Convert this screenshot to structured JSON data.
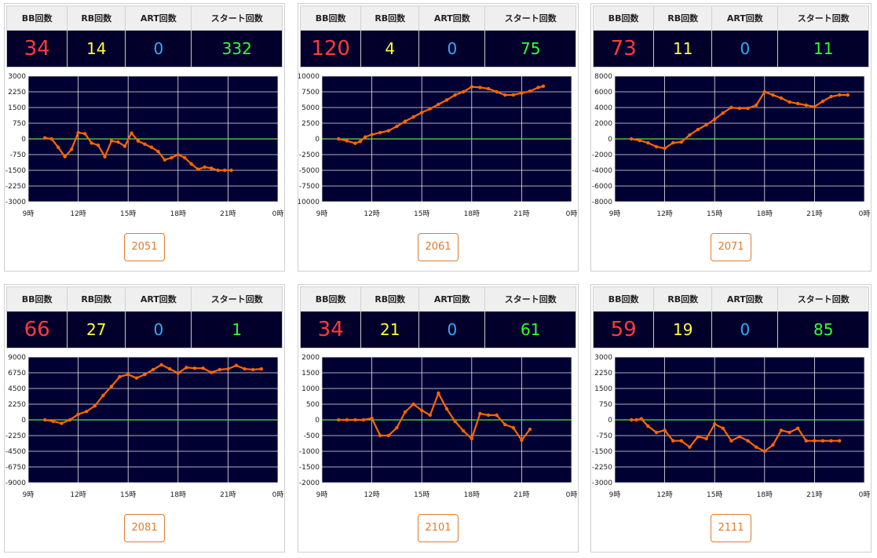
{
  "headers": {
    "bb": "BB回数",
    "rb": "RB回数",
    "art": "ART回数",
    "start": "スタート回数"
  },
  "colors": {
    "plot_bg": "#000033",
    "line": "#ff6600",
    "zero_line": "#66dd44",
    "grid": "#e8e8e8",
    "button": "#e07b2c"
  },
  "machines": [
    {
      "bb": "34",
      "rb": "14",
      "art": "0",
      "start": "332",
      "button": "2051",
      "chart_data": {
        "type": "line",
        "xlabel": "",
        "ylabel": "",
        "x_ticks": [
          "9時",
          "12時",
          "15時",
          "18時",
          "21時",
          "0時"
        ],
        "y_ticks": [
          "3000",
          "2250",
          "1500",
          "750",
          "0",
          "-750",
          "-1500",
          "-2250",
          "-3000"
        ],
        "xlim": [
          9,
          24
        ],
        "ylim": [
          -3000,
          3000
        ],
        "series": [
          {
            "x": [
              10.0,
              10.4,
              10.8,
              11.2,
              11.6,
              12.0,
              12.4,
              12.8,
              13.2,
              13.6,
              14.0,
              14.4,
              14.8,
              15.2,
              15.6,
              16.0,
              16.4,
              16.8,
              17.2,
              17.6,
              18.0,
              18.4,
              18.8,
              19.2,
              19.6,
              20.0,
              20.4,
              20.8,
              21.2
            ],
            "y": [
              50,
              0,
              -400,
              -850,
              -500,
              300,
              250,
              -200,
              -300,
              -850,
              -100,
              -150,
              -350,
              280,
              -100,
              -250,
              -400,
              -600,
              -1000,
              -900,
              -750,
              -900,
              -1200,
              -1450,
              -1350,
              -1400,
              -1500,
              -1500,
              -1500
            ]
          }
        ]
      }
    },
    {
      "bb": "120",
      "rb": "4",
      "art": "0",
      "start": "75",
      "button": "2061",
      "chart_data": {
        "type": "line",
        "xlabel": "",
        "ylabel": "",
        "x_ticks": [
          "9時",
          "12時",
          "15時",
          "18時",
          "21時",
          "0時"
        ],
        "y_ticks": [
          "10000",
          "7500",
          "5000",
          "2500",
          "0",
          "-2500",
          "-5000",
          "-7500",
          "-10000"
        ],
        "xlim": [
          9,
          24
        ],
        "ylim": [
          -10000,
          10000
        ],
        "series": [
          {
            "x": [
              10.0,
              10.5,
              11.0,
              11.3,
              11.6,
              12.0,
              12.5,
              13.0,
              13.5,
              14.0,
              14.5,
              15.0,
              15.5,
              16.0,
              16.5,
              17.0,
              17.5,
              18.0,
              18.5,
              19.0,
              19.5,
              20.0,
              20.5,
              21.0,
              21.5,
              22.0,
              22.3
            ],
            "y": [
              0,
              -300,
              -700,
              -400,
              300,
              700,
              1000,
              1300,
              2000,
              2800,
              3500,
              4200,
              4800,
              5500,
              6200,
              7000,
              7500,
              8300,
              8200,
              8000,
              7500,
              7000,
              7000,
              7300,
              7600,
              8200,
              8400
            ]
          }
        ]
      }
    },
    {
      "bb": "73",
      "rb": "11",
      "art": "0",
      "start": "11",
      "button": "2071",
      "chart_data": {
        "type": "line",
        "xlabel": "",
        "ylabel": "",
        "x_ticks": [
          "9時",
          "12時",
          "15時",
          "18時",
          "21時",
          "0時"
        ],
        "y_ticks": [
          "8000",
          "6000",
          "4000",
          "2000",
          "0",
          "-2000",
          "-4000",
          "-6000",
          "-8000"
        ],
        "xlim": [
          9,
          24
        ],
        "ylim": [
          -8000,
          8000
        ],
        "series": [
          {
            "x": [
              10.0,
              10.5,
              11.0,
              11.5,
              12.0,
              12.5,
              13.0,
              13.5,
              14.0,
              14.5,
              15.0,
              15.5,
              16.0,
              16.5,
              17.0,
              17.5,
              18.0,
              18.5,
              19.0,
              19.5,
              20.0,
              20.5,
              21.0,
              21.5,
              22.0,
              22.5,
              23.0
            ],
            "y": [
              0,
              -200,
              -500,
              -1000,
              -1200,
              -500,
              -400,
              500,
              1200,
              1800,
              2500,
              3300,
              4000,
              3900,
              3900,
              4300,
              6000,
              5600,
              5200,
              4700,
              4500,
              4300,
              4100,
              4800,
              5400,
              5600,
              5600
            ]
          }
        ]
      }
    },
    {
      "bb": "66",
      "rb": "27",
      "art": "0",
      "start": "1",
      "button": "2081",
      "chart_data": {
        "type": "line",
        "xlabel": "",
        "ylabel": "",
        "x_ticks": [
          "9時",
          "12時",
          "15時",
          "18時",
          "21時",
          "0時"
        ],
        "y_ticks": [
          "9000",
          "6750",
          "4500",
          "2250",
          "0",
          "-2250",
          "-4500",
          "-6750",
          "-9000"
        ],
        "xlim": [
          9,
          24
        ],
        "ylim": [
          -9000,
          9000
        ],
        "series": [
          {
            "x": [
              10.0,
              10.5,
              11.0,
              11.5,
              12.0,
              12.5,
              13.0,
              13.5,
              14.0,
              14.5,
              15.0,
              15.5,
              16.0,
              16.5,
              17.0,
              17.5,
              18.0,
              18.5,
              19.0,
              19.5,
              20.0,
              20.5,
              21.0,
              21.5,
              22.0,
              22.5,
              23.0
            ],
            "y": [
              0,
              -200,
              -500,
              0,
              800,
              1200,
              2000,
              3500,
              4800,
              6200,
              6500,
              6000,
              6500,
              7200,
              7900,
              7300,
              6700,
              7500,
              7400,
              7400,
              6800,
              7200,
              7300,
              7800,
              7300,
              7200,
              7300
            ]
          }
        ]
      }
    },
    {
      "bb": "34",
      "rb": "21",
      "art": "0",
      "start": "61",
      "button": "2101",
      "chart_data": {
        "type": "line",
        "xlabel": "",
        "ylabel": "",
        "x_ticks": [
          "9時",
          "12時",
          "15時",
          "18時",
          "21時",
          "0時"
        ],
        "y_ticks": [
          "2000",
          "1500",
          "1000",
          "500",
          "0",
          "-500",
          "-1000",
          "-1500",
          "-2000"
        ],
        "xlim": [
          9,
          24
        ],
        "ylim": [
          -2000,
          2000
        ],
        "series": [
          {
            "x": [
              10.0,
              10.5,
              11.0,
              11.5,
              12.0,
              12.5,
              13.0,
              13.5,
              14.0,
              14.5,
              15.0,
              15.5,
              16.0,
              16.5,
              17.0,
              17.5,
              18.0,
              18.5,
              19.0,
              19.5,
              20.0,
              20.5,
              21.0,
              21.5
            ],
            "y": [
              0,
              0,
              0,
              0,
              50,
              -500,
              -500,
              -250,
              250,
              500,
              300,
              150,
              850,
              350,
              -50,
              -350,
              -600,
              200,
              150,
              150,
              -150,
              -250,
              -650,
              -300
            ]
          }
        ]
      }
    },
    {
      "bb": "59",
      "rb": "19",
      "art": "0",
      "start": "85",
      "button": "2111",
      "chart_data": {
        "type": "line",
        "xlabel": "",
        "ylabel": "",
        "x_ticks": [
          "9時",
          "12時",
          "15時",
          "18時",
          "21時",
          "0時"
        ],
        "y_ticks": [
          "3000",
          "2250",
          "1500",
          "750",
          "0",
          "-750",
          "-1500",
          "-2250",
          "-3000"
        ],
        "xlim": [
          9,
          24
        ],
        "ylim": [
          -3000,
          3000
        ],
        "series": [
          {
            "x": [
              10.0,
              10.3,
              10.6,
              11.0,
              11.5,
              12.0,
              12.5,
              13.0,
              13.5,
              14.0,
              14.5,
              15.0,
              15.5,
              16.0,
              16.5,
              17.0,
              17.5,
              18.0,
              18.5,
              19.0,
              19.5,
              20.0,
              20.5,
              21.0,
              21.5,
              22.0,
              22.5
            ],
            "y": [
              0,
              0,
              50,
              -300,
              -600,
              -500,
              -1000,
              -1000,
              -1300,
              -800,
              -900,
              -200,
              -400,
              -1000,
              -800,
              -1000,
              -1300,
              -1500,
              -1200,
              -500,
              -600,
              -400,
              -1000,
              -1000,
              -1000,
              -1000,
              -1000
            ]
          }
        ]
      }
    }
  ]
}
